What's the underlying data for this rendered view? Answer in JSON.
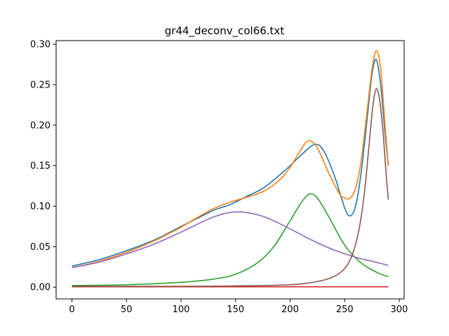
{
  "chart_data": {
    "type": "line",
    "title": "gr44_deconv_col66.txt",
    "xlabel": "",
    "ylabel": "",
    "xlim": [
      -14.5,
      304.5
    ],
    "ylim": [
      -0.0145,
      0.3045
    ],
    "xticks": [
      0,
      50,
      100,
      150,
      200,
      250,
      300
    ],
    "xtick_labels": [
      "0",
      "50",
      "100",
      "150",
      "200",
      "250",
      "300"
    ],
    "yticks": [
      0.0,
      0.05,
      0.1,
      0.15,
      0.2,
      0.25,
      0.3
    ],
    "ytick_labels": [
      "0.00",
      "0.05",
      "0.10",
      "0.15",
      "0.20",
      "0.25",
      "0.30"
    ],
    "grid": false,
    "legend": "none",
    "series": [
      {
        "color": "#1f77b4",
        "x": [
          0,
          25,
          50,
          75,
          90,
          100,
          115,
          130,
          145,
          160,
          175,
          190,
          200,
          210,
          222,
          230,
          240,
          250,
          255,
          260,
          265,
          270,
          275,
          279,
          283,
          287,
          290
        ],
        "y": [
          0.026,
          0.034,
          0.045,
          0.058,
          0.068,
          0.075,
          0.085,
          0.095,
          0.102,
          0.112,
          0.122,
          0.138,
          0.15,
          0.163,
          0.176,
          0.17,
          0.14,
          0.098,
          0.088,
          0.1,
          0.14,
          0.2,
          0.262,
          0.281,
          0.25,
          0.19,
          0.15
        ]
      },
      {
        "color": "#ff7f0e",
        "x": [
          0,
          25,
          50,
          75,
          90,
          100,
          115,
          130,
          145,
          160,
          175,
          190,
          200,
          210,
          217,
          225,
          235,
          245,
          250,
          255,
          260,
          265,
          270,
          275,
          279,
          283,
          287,
          290
        ],
        "y": [
          0.024,
          0.032,
          0.043,
          0.057,
          0.067,
          0.074,
          0.086,
          0.097,
          0.105,
          0.111,
          0.118,
          0.132,
          0.148,
          0.17,
          0.181,
          0.172,
          0.142,
          0.116,
          0.11,
          0.11,
          0.122,
          0.155,
          0.21,
          0.268,
          0.292,
          0.27,
          0.2,
          0.15
        ]
      },
      {
        "color": "#2ca02c",
        "x": [
          0,
          50,
          100,
          130,
          150,
          170,
          185,
          200,
          210,
          218,
          225,
          235,
          250,
          265,
          280,
          290
        ],
        "y": [
          0.002,
          0.003,
          0.006,
          0.01,
          0.016,
          0.03,
          0.05,
          0.082,
          0.104,
          0.115,
          0.11,
          0.088,
          0.052,
          0.03,
          0.018,
          0.013
        ]
      },
      {
        "color": "#d62728",
        "x": [
          0,
          100,
          200,
          290
        ],
        "y": [
          0.0005,
          0.0005,
          0.0005,
          0.0005
        ]
      },
      {
        "color": "#9467bd",
        "x": [
          0,
          25,
          50,
          75,
          100,
          125,
          140,
          152,
          165,
          180,
          200,
          220,
          240,
          260,
          275,
          290
        ],
        "y": [
          0.024,
          0.031,
          0.041,
          0.053,
          0.068,
          0.084,
          0.091,
          0.093,
          0.091,
          0.085,
          0.072,
          0.058,
          0.046,
          0.037,
          0.032,
          0.027
        ]
      },
      {
        "color": "#8c564b",
        "x": [
          0,
          100,
          150,
          200,
          225,
          240,
          250,
          257,
          263,
          268,
          272,
          276,
          279,
          282,
          285,
          288,
          290
        ],
        "y": [
          0.001,
          0.001,
          0.0015,
          0.003,
          0.007,
          0.013,
          0.023,
          0.04,
          0.07,
          0.115,
          0.17,
          0.225,
          0.245,
          0.232,
          0.195,
          0.14,
          0.108
        ]
      }
    ]
  }
}
